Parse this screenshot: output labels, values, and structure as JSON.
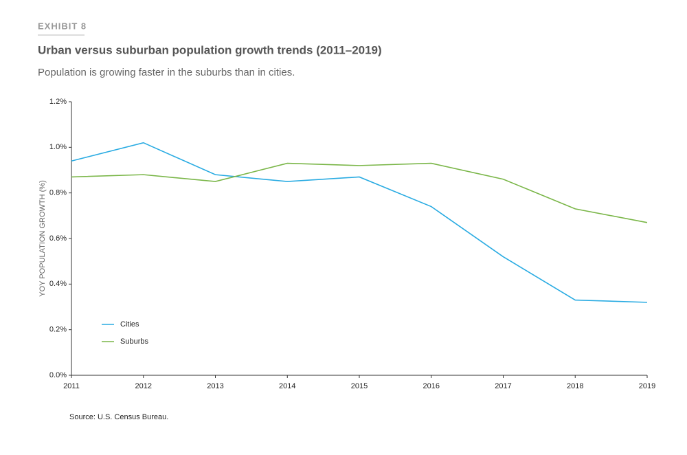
{
  "chart_data": {
    "type": "line",
    "exhibit": "EXHIBIT 8",
    "title": "Urban versus suburban population growth trends (2011–2019)",
    "subtitle": "Population is growing faster in the suburbs than in cities.",
    "y_label": "YOY POPULATION GROWTH (%)",
    "source": "Source: U.S. Census Bureau.",
    "categories": [
      "2011",
      "2012",
      "2013",
      "2014",
      "2015",
      "2016",
      "2017",
      "2018",
      "2019"
    ],
    "series": [
      {
        "name": "Cities",
        "color": "#29abe2",
        "values": [
          0.94,
          1.02,
          0.88,
          0.85,
          0.87,
          0.74,
          0.52,
          0.33,
          0.32
        ]
      },
      {
        "name": "Suburbs",
        "color": "#7ab648",
        "values": [
          0.87,
          0.88,
          0.85,
          0.93,
          0.92,
          0.93,
          0.86,
          0.73,
          0.67
        ]
      }
    ],
    "ylim": [
      0,
      1.2
    ],
    "yticks": [
      {
        "value": 0,
        "label": "0.0%"
      },
      {
        "value": 0.2,
        "label": "0.2%"
      },
      {
        "value": 0.4,
        "label": "0.4%"
      },
      {
        "value": 0.6,
        "label": "0.6%"
      },
      {
        "value": 0.8,
        "label": "0.8%"
      },
      {
        "value": 1.0,
        "label": "1.0%"
      },
      {
        "value": 1.2,
        "label": "1.2%"
      }
    ],
    "legend": "lower-left"
  }
}
